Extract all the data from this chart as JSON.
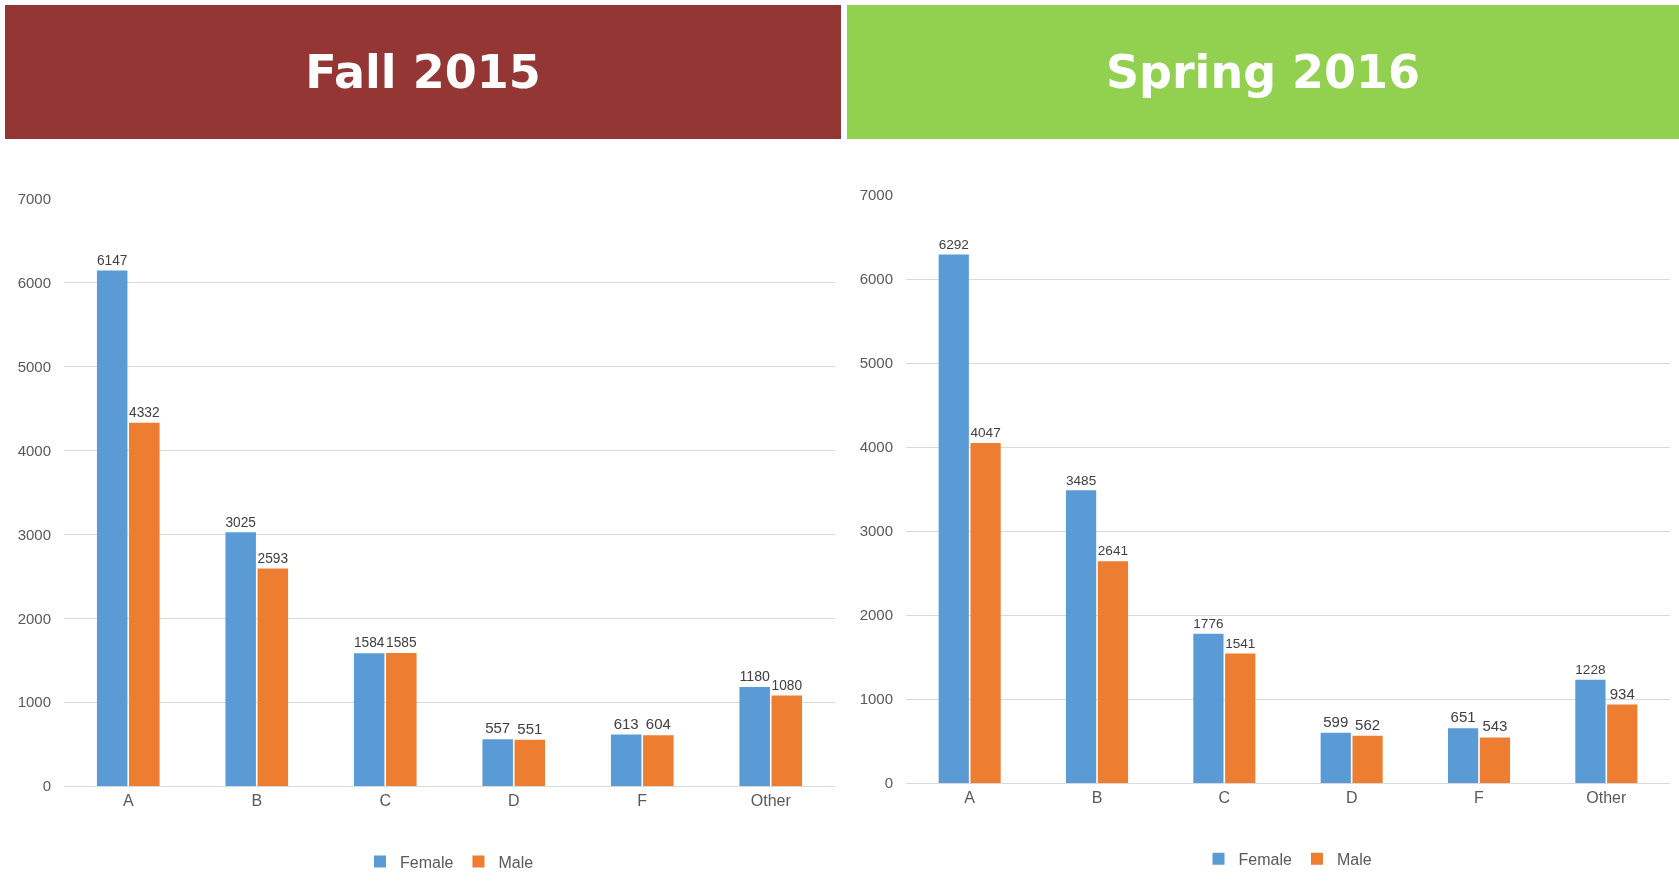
{
  "chart_data": [
    {
      "type": "bar",
      "title": "Fall 2015",
      "categories": [
        "A",
        "B",
        "C",
        "D",
        "F",
        "Other"
      ],
      "series": [
        {
          "name": "Female",
          "color": "#5b9bd5",
          "values": [
            6147,
            3025,
            1584,
            557,
            613,
            1180
          ]
        },
        {
          "name": "Male",
          "color": "#ed7d31",
          "values": [
            4332,
            2593,
            1585,
            551,
            604,
            1080
          ]
        }
      ],
      "ylim": [
        0,
        7000
      ],
      "yticks": [
        0,
        1000,
        2000,
        3000,
        4000,
        5000,
        6000,
        7000
      ],
      "grid": "y",
      "legend": "bottom",
      "data_labels": true
    },
    {
      "type": "bar",
      "title": "Spring 2016",
      "categories": [
        "A",
        "B",
        "C",
        "D",
        "F",
        "Other"
      ],
      "series": [
        {
          "name": "Female",
          "color": "#5b9bd5",
          "values": [
            6292,
            3485,
            1776,
            599,
            651,
            1228
          ]
        },
        {
          "name": "Male",
          "color": "#ed7d31",
          "values": [
            4047,
            2641,
            1541,
            562,
            543,
            934
          ]
        }
      ],
      "ylim": [
        0,
        7000
      ],
      "yticks": [
        0,
        1000,
        2000,
        3000,
        4000,
        5000,
        6000,
        7000
      ],
      "grid": "y",
      "legend": "bottom",
      "data_labels": true
    }
  ]
}
